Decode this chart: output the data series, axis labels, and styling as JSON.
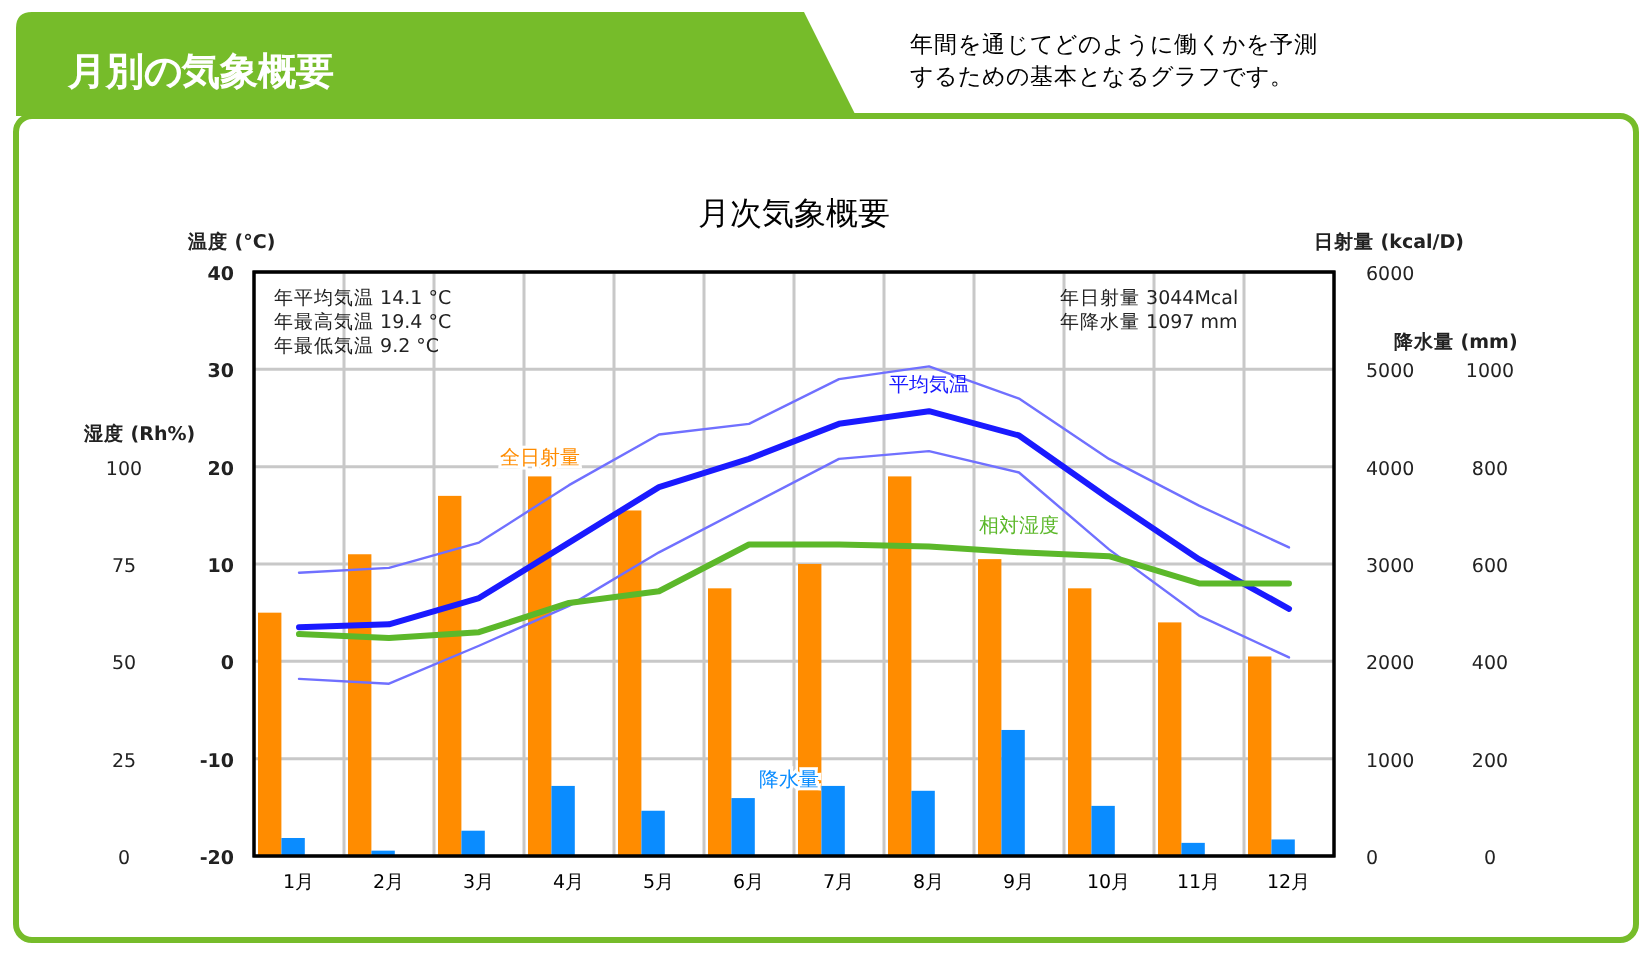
{
  "chart_data": [
    {
      "type": "bar",
      "title": "月次気象概要",
      "subtitle": "月別の気象概要",
      "categories": [
        "1月",
        "2月",
        "3月",
        "4月",
        "5月",
        "6月",
        "7月",
        "8月",
        "9月",
        "10月",
        "11月",
        "12月"
      ],
      "ylabel": "温度 (°C)",
      "y2label": "日射量 (kcal/D)",
      "y3label": "降水量 (mm)",
      "ylim": [
        -20,
        40
      ],
      "yticks": [
        -20,
        -10,
        0,
        10,
        20,
        30,
        40
      ],
      "y2lim": [
        0,
        6000
      ],
      "y2ticks": [
        0,
        1000,
        2000,
        3000,
        4000,
        5000,
        6000
      ],
      "y3lim": [
        0,
        1200
      ],
      "y3ticks": [
        0,
        200,
        400,
        600,
        800,
        1000
      ],
      "grid": true,
      "annotations": [
        "年間を通じてどのように働くかを予測するための基本となるグラフです。",
        "年平均気温 14.1 °C",
        "年最高気温 19.4 °C",
        "年最低気温 9.2 °C",
        "年日射量 3044Mcal",
        "年降水量 1097 mm"
      ],
      "series": [
        {
          "name": "全日射量",
          "type": "bar",
          "axis": "y2",
          "color": "#ff8c00",
          "values": [
            2500,
            3100,
            3700,
            3900,
            3550,
            2750,
            3000,
            3900,
            3050,
            2750,
            2400,
            2050
          ]
        },
        {
          "name": "降水量",
          "type": "bar",
          "axis": "y3",
          "color": "#0a8cff",
          "values": [
            37,
            11,
            52,
            144,
            93,
            119,
            144,
            134,
            259,
            103,
            27,
            34
          ]
        },
        {
          "type": "line",
          "color": "#7070ff",
          "values": [
            9.1,
            9.6,
            12.2,
            18.1,
            23.3,
            24.4,
            29.0,
            30.3,
            27.0,
            20.8,
            16.0,
            11.7
          ]
        },
        {
          "type": "line",
          "color": "#7070ff",
          "values": [
            -1.8,
            -2.3,
            1.6,
            5.7,
            11.2,
            16.0,
            20.8,
            21.6,
            19.4,
            11.5,
            4.7,
            0.4
          ]
        },
        {
          "name": "平均気温",
          "type": "line",
          "color": "#1a1aff",
          "values": [
            3.5,
            3.8,
            6.5,
            12.2,
            17.9,
            20.8,
            24.4,
            25.7,
            23.2,
            16.7,
            10.5,
            5.4
          ]
        }
      ]
    },
    {
      "type": "line",
      "ylabel": "湿度 (Rh%)",
      "ylim": [
        0,
        150
      ],
      "yticks": [
        0,
        25,
        50,
        75,
        100
      ],
      "tick_labels": "y",
      "categories": [
        null,
        null,
        null,
        null,
        null,
        null,
        null,
        null,
        null,
        null,
        null,
        null
      ],
      "series": [
        {
          "name": "相対湿度",
          "color": "#5cb82a",
          "values": [
            57,
            56,
            57.5,
            65,
            68,
            80,
            80,
            79.5,
            78,
            77,
            70,
            70
          ]
        }
      ]
    }
  ]
}
